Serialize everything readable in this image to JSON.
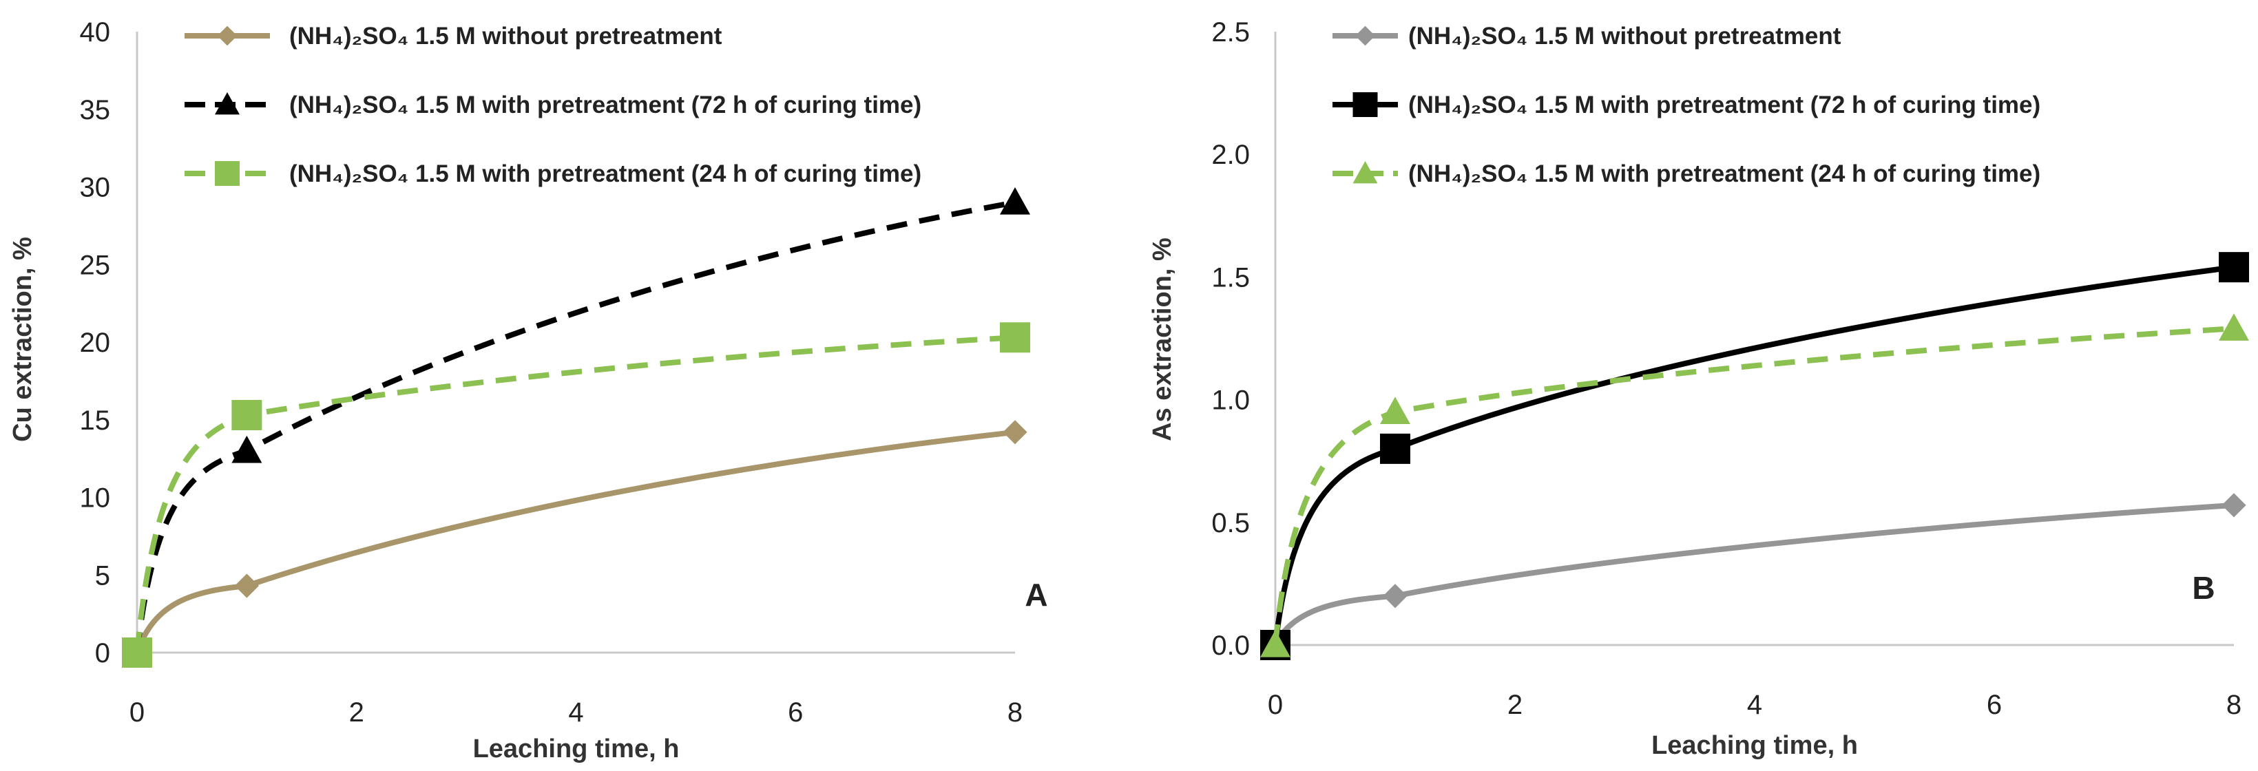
{
  "chart_data": [
    {
      "type": "line",
      "panel_label": "A",
      "xlabel": "Leaching time, h",
      "ylabel": "Cu extraction, %",
      "xlim": [
        0,
        8
      ],
      "ylim": [
        0,
        40
      ],
      "xticks": [
        0,
        2,
        4,
        6,
        8
      ],
      "yticks": [
        0,
        5,
        10,
        15,
        20,
        25,
        30,
        35,
        40
      ],
      "legend_position": "top-left",
      "x": [
        0,
        1,
        8
      ],
      "series": [
        {
          "name": "(NH₄)₂SO₄ 1.5 M without pretreatment",
          "values": [
            0,
            4.3,
            14.2
          ],
          "color": "#a8956a",
          "dash": false,
          "marker": "diamond"
        },
        {
          "name": "(NH₄)₂SO₄ 1.5 M with pretreatment (72 h of curing time)",
          "values": [
            0,
            13.0,
            29.0
          ],
          "color": "#000000",
          "dash": true,
          "marker": "triangle"
        },
        {
          "name": "(NH₄)₂SO₄ 1.5 M with pretreatment (24 h of curing time)",
          "values": [
            0,
            15.3,
            20.3
          ],
          "color": "#8cc152",
          "dash": true,
          "marker": "square"
        }
      ]
    },
    {
      "type": "line",
      "panel_label": "B",
      "xlabel": "Leaching time, h",
      "ylabel": "As extraction, %",
      "xlim": [
        0,
        8
      ],
      "ylim": [
        0,
        2.5
      ],
      "xticks": [
        0,
        2,
        4,
        6,
        8
      ],
      "yticks": [
        "0.0",
        "0.5",
        "1.0",
        "1.5",
        "2.0",
        "2.5"
      ],
      "legend_position": "top-left",
      "x": [
        0,
        1,
        8
      ],
      "series": [
        {
          "name": "(NH₄)₂SO₄ 1.5 M without pretreatment",
          "values": [
            0,
            0.2,
            0.57
          ],
          "color": "#959595",
          "dash": false,
          "marker": "diamond"
        },
        {
          "name": "(NH₄)₂SO₄ 1.5 M with pretreatment (72 h of curing time)",
          "values": [
            0,
            0.8,
            1.54
          ],
          "color": "#000000",
          "dash": false,
          "marker": "square"
        },
        {
          "name": "(NH₄)₂SO₄ 1.5 M with pretreatment (24 h of curing time)",
          "values": [
            0,
            0.95,
            1.29
          ],
          "color": "#8cc152",
          "dash": true,
          "marker": "triangle"
        }
      ]
    }
  ]
}
